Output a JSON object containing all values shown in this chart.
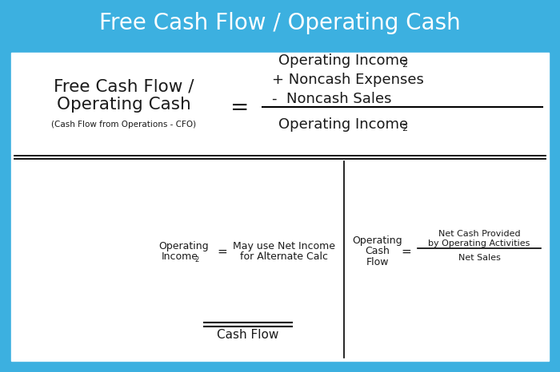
{
  "title": "Free Cash Flow / Operating Cash",
  "title_bg": "#3cb0e0",
  "title_color": "white",
  "white_box_color": "white",
  "main_left_line1": "Free Cash Flow /",
  "main_left_line2": "Operating Cash",
  "main_left_sub": "(Cash Flow from Operations - CFO)",
  "equals_sign": "=",
  "numerator_line1": "Operating Income",
  "numerator_line1_sub": "2",
  "numerator_line2": "+ Noncash Expenses",
  "numerator_line3": "-  Noncash Sales",
  "denominator": "Operating Income",
  "denominator_sub": "2",
  "bottom_left_text1": "Operating",
  "bottom_left_text2": "Income",
  "bottom_left_sub": "2",
  "bottom_left_eq": "=",
  "bottom_left_rhs1": "May use Net Income",
  "bottom_left_rhs2": "for Alternate Calc",
  "bottom_right_lhs1": "Operating",
  "bottom_right_lhs2": "Cash",
  "bottom_right_lhs3": "Flow",
  "bottom_right_eq": "=",
  "bottom_right_num1": "Net Cash Provided",
  "bottom_right_num2": "by Operating Activities",
  "bottom_right_den": "Net Sales",
  "bottom_label": "Cash Flow",
  "text_color": "#1a1a1a"
}
